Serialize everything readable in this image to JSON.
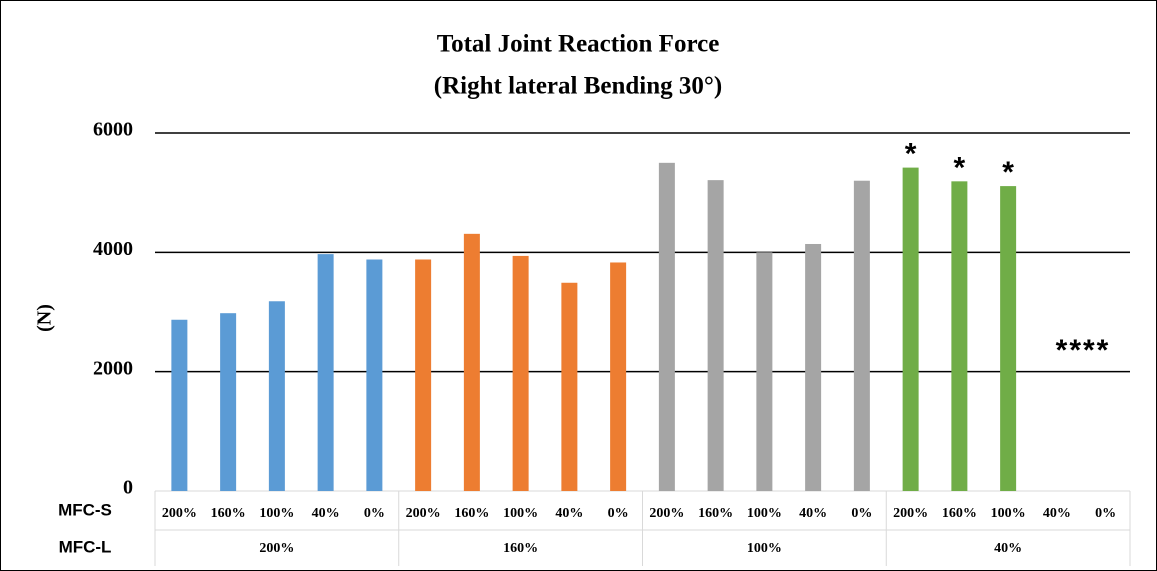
{
  "chart_data": {
    "type": "bar",
    "title": [
      "Total Joint Reaction Force",
      "(Right lateral Bending 30°)"
    ],
    "ylabel": "(N)",
    "row_labels": [
      "MFC-S",
      "MFC-L"
    ],
    "categories": [
      "200%",
      "160%",
      "100%",
      "40%",
      "0%"
    ],
    "series": [
      {
        "name": "200%",
        "color": "#5b9bd5",
        "values": [
          2870,
          2980,
          3180,
          3970,
          3880
        ]
      },
      {
        "name": "160%",
        "color": "#ed7d31",
        "values": [
          3880,
          4310,
          3940,
          3490,
          3830
        ]
      },
      {
        "name": "100%",
        "color": "#a5a5a5",
        "values": [
          5500,
          5210,
          4000,
          4140,
          5200
        ]
      },
      {
        "name": "40%",
        "color": "#70ad47",
        "values": [
          5420,
          5190,
          5110,
          null,
          null
        ]
      }
    ],
    "annotations": [
      "*",
      "*",
      "*",
      "****"
    ],
    "ylim": [
      0,
      6000
    ],
    "yticks": [
      0,
      2000,
      4000,
      6000
    ],
    "grid": true
  }
}
